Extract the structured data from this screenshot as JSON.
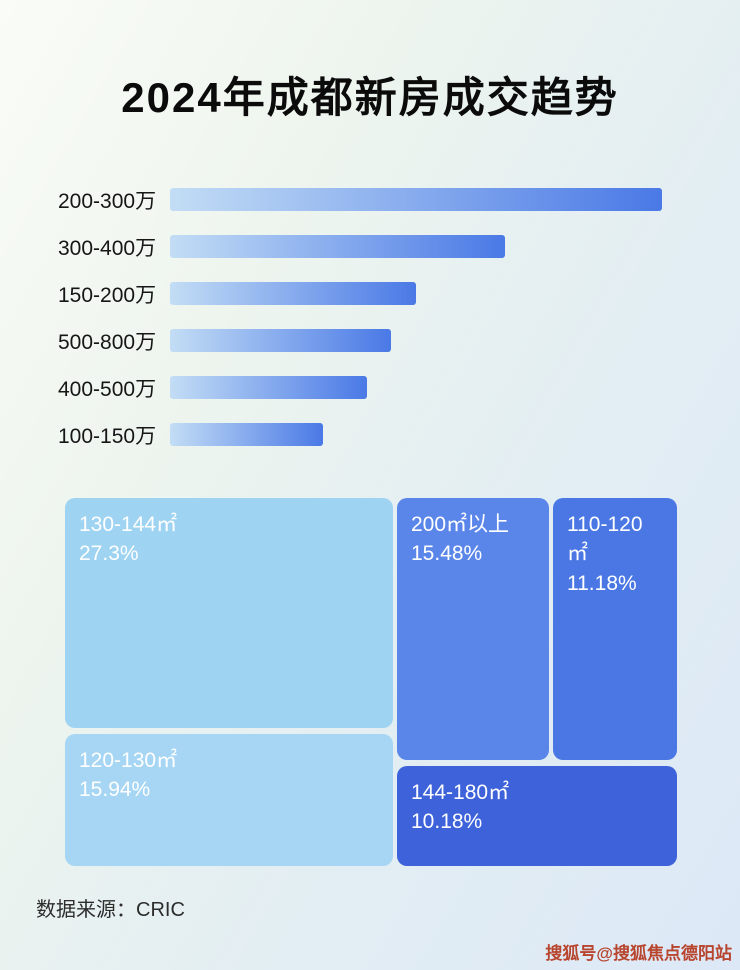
{
  "title": "2024年成都新房成交趋势",
  "colors": {
    "bar_gradient_start": "#c3ddf5",
    "bar_gradient_end": "#4a79e6",
    "watermark": "#b8452e"
  },
  "chart_data": [
    {
      "type": "bar",
      "orientation": "horizontal",
      "title": "2024年成都新房成交趋势",
      "categories": [
        "200-300万",
        "300-400万",
        "150-200万",
        "500-800万",
        "400-500万",
        "100-150万"
      ],
      "values": [
        100,
        68,
        50,
        45,
        40,
        31
      ],
      "value_unit": "relative bar length % (no numeric axis shown)",
      "xlabel": "",
      "ylabel": "",
      "grid": false,
      "legend": "none"
    },
    {
      "type": "treemap",
      "items": [
        {
          "label": "130-144㎡",
          "value": "27.3%",
          "color": "#9fd3f2"
        },
        {
          "label": "200㎡以上",
          "value": "15.48%",
          "color": "#5b86e9"
        },
        {
          "label": "110-120㎡",
          "value": "11.18%",
          "color": "#4a77e3"
        },
        {
          "label": "120-130㎡",
          "value": "15.94%",
          "color": "#a6d6f3"
        },
        {
          "label": "144-180㎡",
          "value": "10.18%",
          "color": "#3d62da"
        }
      ]
    }
  ],
  "footer": {
    "source": "数据来源：CRIC"
  },
  "watermark": "搜狐号@搜狐焦点德阳站"
}
